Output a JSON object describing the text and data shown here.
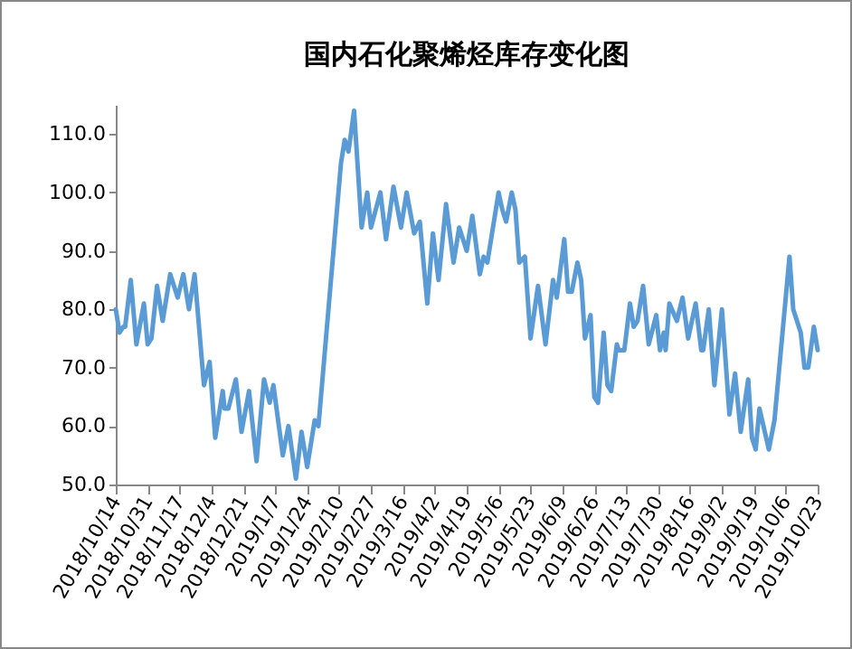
{
  "chart_data": {
    "type": "line",
    "title": "国内石化聚烯烃库存变化图",
    "x": [
      "2018-10-14",
      "2018-10-16",
      "2018-10-18",
      "2018-10-19",
      "2018-10-22",
      "2018-10-25",
      "2018-10-29",
      "2018-10-31",
      "2018-11-02",
      "2018-11-05",
      "2018-11-08",
      "2018-11-12",
      "2018-11-14",
      "2018-11-16",
      "2018-11-19",
      "2018-11-22",
      "2018-11-25",
      "2018-11-30",
      "2018-12-03",
      "2018-12-06",
      "2018-12-10",
      "2018-12-11",
      "2018-12-13",
      "2018-12-17",
      "2018-12-20",
      "2018-12-24",
      "2018-12-28",
      "2019-01-01",
      "2019-01-04",
      "2019-01-06",
      "2019-01-11",
      "2019-01-14",
      "2019-01-18",
      "2019-01-21",
      "2019-01-24",
      "2019-01-28",
      "2019-01-30",
      "2019-02-11",
      "2019-02-13",
      "2019-02-15",
      "2019-02-18",
      "2019-02-22",
      "2019-02-25",
      "2019-02-27",
      "2019-03-04",
      "2019-03-07",
      "2019-03-11",
      "2019-03-15",
      "2019-03-18",
      "2019-03-22",
      "2019-03-25",
      "2019-03-29",
      "2019-04-01",
      "2019-04-04",
      "2019-04-08",
      "2019-04-12",
      "2019-04-15",
      "2019-04-19",
      "2019-04-22",
      "2019-04-26",
      "2019-04-28",
      "2019-04-30",
      "2019-05-06",
      "2019-05-08",
      "2019-05-10",
      "2019-05-13",
      "2019-05-15",
      "2019-05-17",
      "2019-05-20",
      "2019-05-23",
      "2019-05-27",
      "2019-05-31",
      "2019-06-04",
      "2019-06-06",
      "2019-06-10",
      "2019-06-12",
      "2019-06-14",
      "2019-06-17",
      "2019-06-19",
      "2019-06-21",
      "2019-06-24",
      "2019-06-26",
      "2019-06-28",
      "2019-07-01",
      "2019-07-03",
      "2019-07-05",
      "2019-07-08",
      "2019-07-09",
      "2019-07-12",
      "2019-07-15",
      "2019-07-17",
      "2019-07-19",
      "2019-07-22",
      "2019-07-25",
      "2019-07-29",
      "2019-07-31",
      "2019-08-02",
      "2019-08-03",
      "2019-08-05",
      "2019-08-09",
      "2019-08-12",
      "2019-08-15",
      "2019-08-19",
      "2019-08-22",
      "2019-08-23",
      "2019-08-26",
      "2019-08-29",
      "2019-09-02",
      "2019-09-06",
      "2019-09-09",
      "2019-09-12",
      "2019-09-16",
      "2019-09-18",
      "2019-09-20",
      "2019-09-22",
      "2019-09-27",
      "2019-09-30",
      "2019-10-08",
      "2019-10-10",
      "2019-10-14",
      "2019-10-16",
      "2019-10-18",
      "2019-10-21",
      "2019-10-23"
    ],
    "series": [
      {
        "color": "#5b9bd5",
        "values": [
          80,
          76,
          77,
          77,
          85,
          74,
          81,
          74,
          75,
          84,
          78,
          86,
          84,
          82,
          86,
          80,
          86,
          67,
          71,
          58,
          66,
          63,
          63,
          68,
          59,
          66,
          54,
          68,
          64,
          67,
          55,
          60,
          51,
          59,
          53,
          61,
          60,
          105,
          109,
          107,
          114,
          94,
          100,
          94,
          100,
          92,
          101,
          94,
          100,
          93,
          95,
          81,
          93,
          85,
          98,
          88,
          94,
          90,
          96,
          86,
          89,
          88,
          100,
          97,
          95,
          100,
          97,
          88,
          89,
          75,
          84,
          74,
          85,
          82,
          92,
          83,
          83,
          88,
          85,
          75,
          79,
          65,
          64,
          76,
          67,
          66,
          74,
          73,
          73,
          81,
          77,
          78,
          84,
          74,
          79,
          73,
          76,
          73,
          81,
          78,
          82,
          75,
          81,
          73,
          73,
          80,
          67,
          80,
          62,
          69,
          59,
          68,
          58,
          56,
          63,
          56,
          61,
          89,
          80,
          76,
          70,
          70,
          77,
          73
        ]
      }
    ],
    "xlim": [
      "2018-10-14",
      "2019-10-23"
    ],
    "xticks": [
      {
        "value": "2018-10-14",
        "label": "2018/10/14"
      },
      {
        "value": "2018-10-31",
        "label": "2018/10/31"
      },
      {
        "value": "2018-11-17",
        "label": "2018/11/17"
      },
      {
        "value": "2018-12-04",
        "label": "2018/12/4"
      },
      {
        "value": "2018-12-21",
        "label": "2018/12/21"
      },
      {
        "value": "2019-01-07",
        "label": "2019/1/7"
      },
      {
        "value": "2019-01-24",
        "label": "2019/1/24"
      },
      {
        "value": "2019-02-10",
        "label": "2019/2/10"
      },
      {
        "value": "2019-02-27",
        "label": "2019/2/27"
      },
      {
        "value": "2019-03-16",
        "label": "2019/3/16"
      },
      {
        "value": "2019-04-02",
        "label": "2019/4/2"
      },
      {
        "value": "2019-04-19",
        "label": "2019/4/19"
      },
      {
        "value": "2019-05-06",
        "label": "2019/5/6"
      },
      {
        "value": "2019-05-23",
        "label": "2019/5/23"
      },
      {
        "value": "2019-06-09",
        "label": "2019/6/9"
      },
      {
        "value": "2019-06-26",
        "label": "2019/6/26"
      },
      {
        "value": "2019-07-13",
        "label": "2019/7/13"
      },
      {
        "value": "2019-07-30",
        "label": "2019/7/30"
      },
      {
        "value": "2019-08-16",
        "label": "2019/8/16"
      },
      {
        "value": "2019-09-02",
        "label": "2019/9/2"
      },
      {
        "value": "2019-09-19",
        "label": "2019/9/19"
      },
      {
        "value": "2019-10-06",
        "label": "2019/10/6"
      },
      {
        "value": "2019-10-23",
        "label": "2019/10/23"
      }
    ],
    "ylim": [
      50,
      115
    ],
    "yticks": [
      {
        "value": 50,
        "label": "50.0"
      },
      {
        "value": 60,
        "label": "60.0"
      },
      {
        "value": 70,
        "label": "70.0"
      },
      {
        "value": 80,
        "label": "80.0"
      },
      {
        "value": 90,
        "label": "90.0"
      },
      {
        "value": 100,
        "label": "100.0"
      },
      {
        "value": 110,
        "label": "110.0"
      }
    ]
  }
}
